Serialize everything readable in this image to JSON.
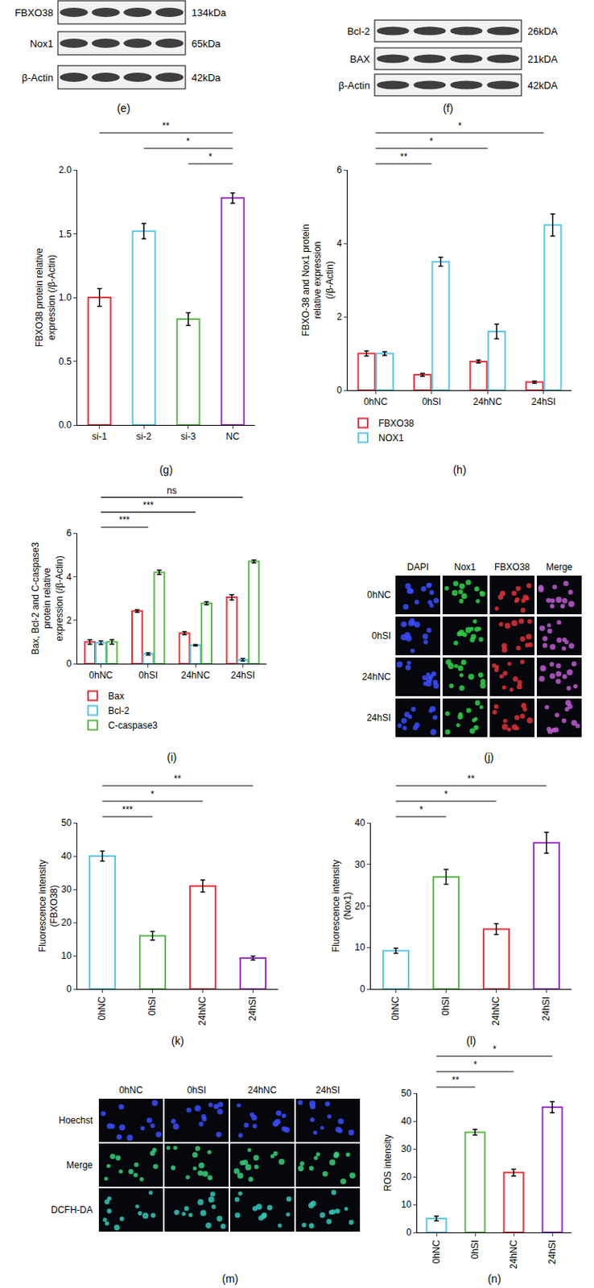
{
  "blots": [
    {
      "label": "(e)",
      "rows": [
        {
          "name": "FBXO38",
          "size": "134kDa"
        },
        {
          "name": "Nox1",
          "size": "65kDa"
        },
        {
          "name": "β-Actin",
          "size": "42kDa"
        }
      ]
    },
    {
      "label": "(f)",
      "rows": [
        {
          "name": "Bcl-2",
          "size": "26kDA"
        },
        {
          "name": "BAX",
          "size": "21kDA"
        },
        {
          "name": "β-Actin",
          "size": "42kDA"
        }
      ]
    }
  ],
  "chart_data": [
    {
      "label": "(g)",
      "type": "bar",
      "categories": [
        "si-1",
        "si-2",
        "si-3",
        "NC"
      ],
      "values": [
        1.0,
        1.52,
        0.83,
        1.78
      ],
      "errors": [
        0.07,
        0.06,
        0.05,
        0.04
      ],
      "colors": [
        "#e8333c",
        "#5bc6e8",
        "#5cb94a",
        "#9a2fc9"
      ],
      "ylabel": "FBXO38 protein relative expression (/β-Actin)",
      "ylim": [
        0,
        2.0
      ],
      "yticks": [
        {
          "value": 0,
          "label": "0.0"
        },
        0.5,
        {
          "value": 1,
          "label": "1.0"
        },
        1.5,
        {
          "value": 2,
          "label": "2.0"
        }
      ],
      "grid": false,
      "significance": [
        {
          "from": "si-3",
          "to": "NC",
          "label": "*"
        },
        {
          "from": "si-2",
          "to": "NC",
          "label": "*"
        },
        {
          "from": "si-1",
          "to": "NC",
          "label": "**"
        }
      ]
    },
    {
      "label": "(h)",
      "type": "bar",
      "categories": [
        "0hNC",
        "0hSI",
        "24hNC",
        "24hSI"
      ],
      "series": [
        {
          "name": "FBXO38",
          "color": "#e8333c",
          "values": [
            1.0,
            0.42,
            0.78,
            0.22
          ],
          "errors": [
            0.07,
            0.04,
            0.04,
            0.03
          ]
        },
        {
          "name": "NOX1",
          "color": "#5bc6e8",
          "values": [
            1.0,
            3.5,
            1.6,
            4.5
          ],
          "errors": [
            0.05,
            0.12,
            0.2,
            0.3
          ]
        }
      ],
      "ylabel": "FBXO-38 and Nox1 protein relative expression (/β-Actin)",
      "ylim": [
        0,
        6
      ],
      "yticks": [
        0,
        2,
        4,
        6
      ],
      "grid": false,
      "legend": "bottom",
      "significance": [
        {
          "from": "0hNC",
          "to": "0hSI",
          "label": "**"
        },
        {
          "from": "0hNC",
          "to": "24hNC",
          "label": "*"
        },
        {
          "from": "0hNC",
          "to": "24hSI",
          "label": "*"
        }
      ]
    },
    {
      "label": "(i)",
      "type": "bar",
      "categories": [
        "0hNC",
        "0hSI",
        "24hNC",
        "24hSI"
      ],
      "series": [
        {
          "name": "Bax",
          "color": "#e8333c",
          "values": [
            1.0,
            2.42,
            1.4,
            3.05
          ],
          "errors": [
            0.1,
            0.06,
            0.07,
            0.12
          ]
        },
        {
          "name": "Bcl-2",
          "color": "#5bc6e8",
          "values": [
            0.97,
            0.45,
            0.85,
            0.18
          ],
          "errors": [
            0.08,
            0.05,
            0.03,
            0.06
          ]
        },
        {
          "name": "C-caspase3",
          "color": "#5cb94a",
          "values": [
            1.0,
            4.2,
            2.78,
            4.7
          ],
          "errors": [
            0.1,
            0.1,
            0.07,
            0.07
          ]
        }
      ],
      "ylabel": "Bax, Bcl-2 and C-caspase3 protein relative expression (/β-Actin)",
      "ylim": [
        0,
        6
      ],
      "yticks": [
        0,
        2,
        4,
        6
      ],
      "grid": false,
      "legend": "bottom",
      "significance": [
        {
          "from": "0hNC",
          "to": "0hSI",
          "label": "***"
        },
        {
          "from": "0hNC",
          "to": "24hNC",
          "label": "***"
        },
        {
          "from": "0hNC",
          "to": "24hSI",
          "label": "ns"
        }
      ]
    },
    {
      "label": "(k)",
      "type": "bar",
      "categories": [
        "0hNC",
        "0hSI",
        "24hNC",
        "24hSI"
      ],
      "values": [
        40,
        16,
        31,
        9.3
      ],
      "errors": [
        1.5,
        1.3,
        1.8,
        0.6
      ],
      "colors": [
        "#5bc6e8",
        "#5cb94a",
        "#e8333c",
        "#9a2fc9"
      ],
      "ylabel": "Fluorescence intensity (FBXO38)",
      "ylim": [
        0,
        50
      ],
      "yticks": [
        0,
        10,
        20,
        30,
        40,
        50
      ],
      "grid": false,
      "significance": [
        {
          "from": "0hNC",
          "to": "0hSI",
          "label": "***"
        },
        {
          "from": "0hNC",
          "to": "24hNC",
          "label": "*"
        },
        {
          "from": "0hNC",
          "to": "24hSI",
          "label": "**"
        }
      ]
    },
    {
      "label": "(l)",
      "type": "bar",
      "categories": [
        "0hNC",
        "0hSI",
        "24hNC",
        "24hSI"
      ],
      "values": [
        9.2,
        27,
        14.4,
        35.2
      ],
      "errors": [
        0.6,
        1.8,
        1.3,
        2.5
      ],
      "colors": [
        "#5bc6e8",
        "#5cb94a",
        "#e8333c",
        "#9a2fc9"
      ],
      "ylabel": "Fluorescence intensity (Nox1)",
      "ylim": [
        0,
        40
      ],
      "yticks": [
        0,
        10,
        20,
        30,
        40
      ],
      "grid": false,
      "significance": [
        {
          "from": "0hNC",
          "to": "0hSI",
          "label": "*"
        },
        {
          "from": "0hNC",
          "to": "24hNC",
          "label": "*"
        },
        {
          "from": "0hNC",
          "to": "24hSI",
          "label": "**"
        }
      ]
    },
    {
      "label": "(n)",
      "type": "bar",
      "categories": [
        "0hNC",
        "0hSI",
        "24hNC",
        "24hSI"
      ],
      "values": [
        5,
        36,
        21.5,
        45
      ],
      "errors": [
        0.8,
        1.0,
        1.2,
        2.0
      ],
      "colors": [
        "#5bc6e8",
        "#5cb94a",
        "#e8333c",
        "#9a2fc9"
      ],
      "ylabel": "ROS intensity",
      "ylim": [
        0,
        50
      ],
      "yticks": [
        0,
        10,
        20,
        30,
        40,
        50
      ],
      "grid": false,
      "significance": [
        {
          "from": "0hNC",
          "to": "0hSI",
          "label": "**"
        },
        {
          "from": "0hNC",
          "to": "24hNC",
          "label": "*"
        },
        {
          "from": "0hNC",
          "to": "24hSI",
          "label": "*"
        }
      ]
    }
  ],
  "images": [
    {
      "label": "(j)",
      "columns": [
        "DAPI",
        "Nox1",
        "FBXO38",
        "Merge"
      ],
      "rows": [
        "0hNC",
        "0hSI",
        "24hNC",
        "24hSI"
      ]
    },
    {
      "label": "(m)",
      "columns": [
        "0hNC",
        "0hSI",
        "24hNC",
        "24hSI"
      ],
      "rows": [
        "Hoechst",
        "Merge",
        "DCFH-DA"
      ]
    }
  ]
}
